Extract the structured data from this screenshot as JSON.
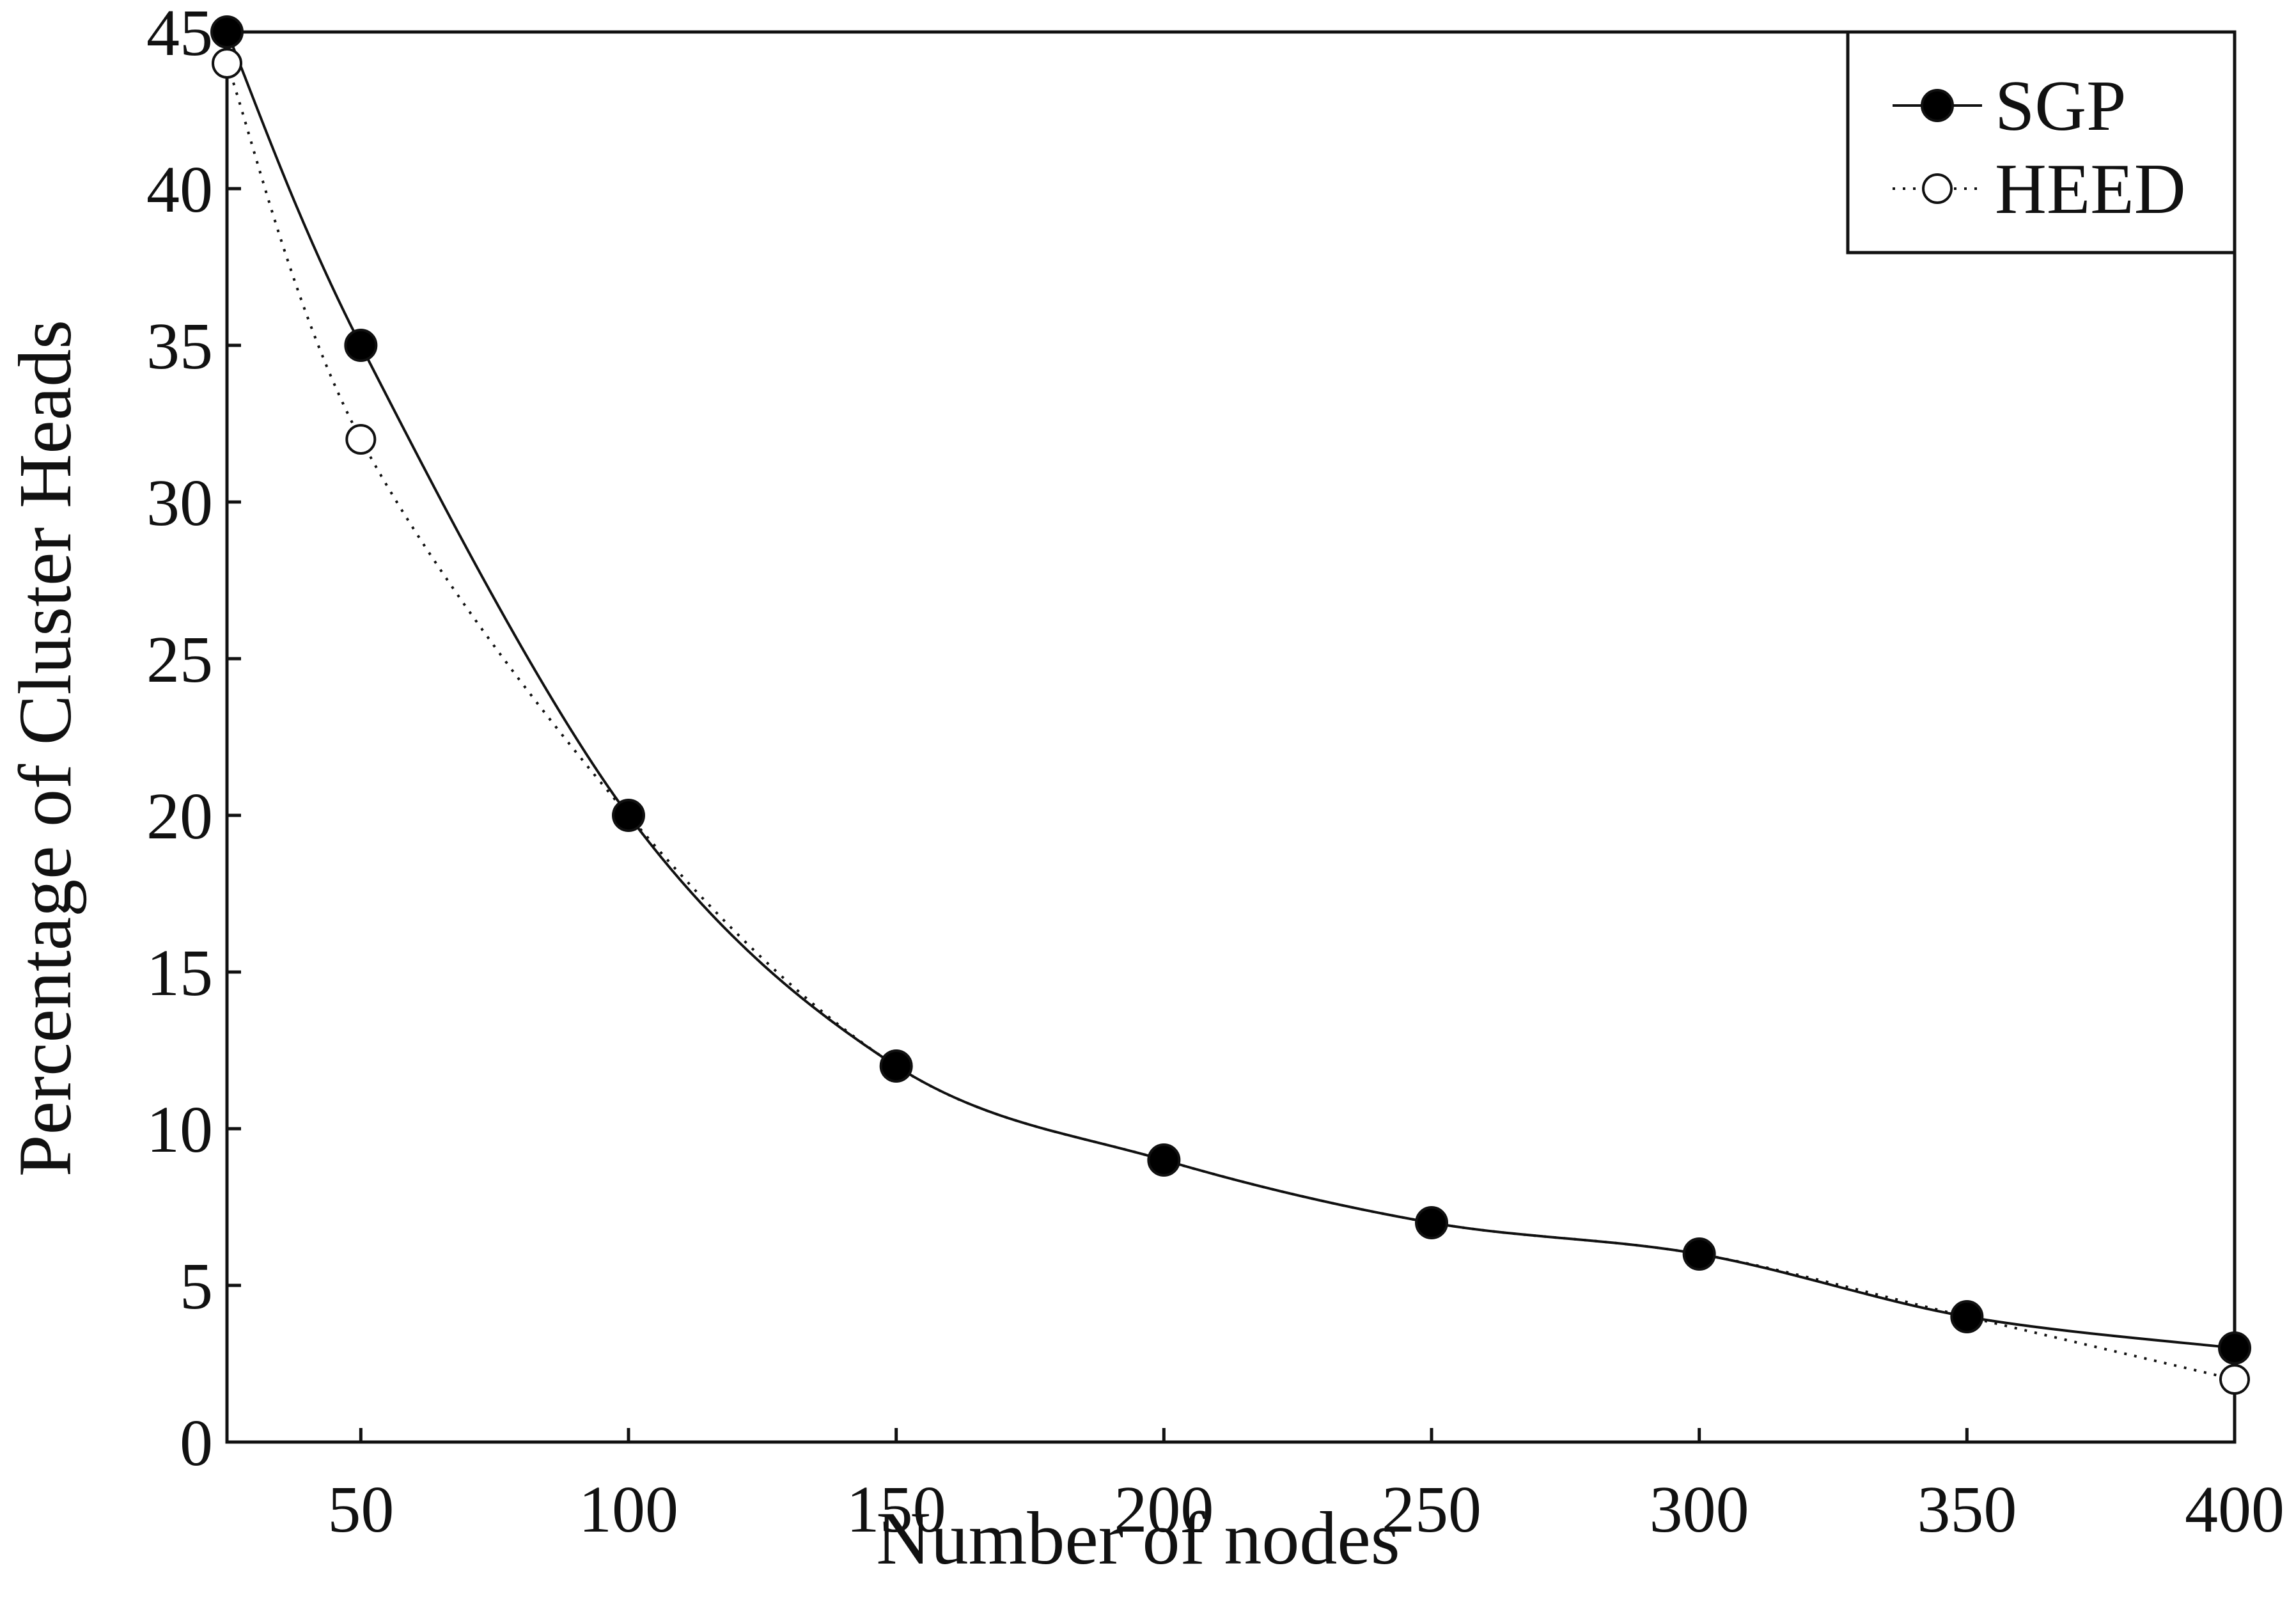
{
  "chart_data": {
    "type": "line",
    "title": "",
    "xlabel": "Number of nodes",
    "ylabel": "Percentage of Cluster Heads",
    "xlim": [
      25,
      400
    ],
    "ylim": [
      0,
      45
    ],
    "x_ticks": [
      50,
      100,
      150,
      200,
      250,
      300,
      350,
      400
    ],
    "y_ticks": [
      0,
      5,
      10,
      15,
      20,
      25,
      30,
      35,
      40,
      45
    ],
    "grid": false,
    "legend_position": "top-right",
    "series": [
      {
        "name": "SGP",
        "line_style": "solid",
        "marker": "filled-circle",
        "x": [
          25,
          50,
          100,
          150,
          200,
          250,
          300,
          350,
          400
        ],
        "y": [
          45,
          35,
          20,
          12,
          9,
          7,
          6,
          4,
          3
        ]
      },
      {
        "name": "HEED",
        "line_style": "dotted",
        "marker": "open-circle",
        "x": [
          25,
          50,
          100,
          150,
          200,
          250,
          300,
          350,
          400
        ],
        "y": [
          44,
          32,
          20,
          12,
          9,
          7,
          6,
          4,
          2
        ]
      }
    ]
  }
}
